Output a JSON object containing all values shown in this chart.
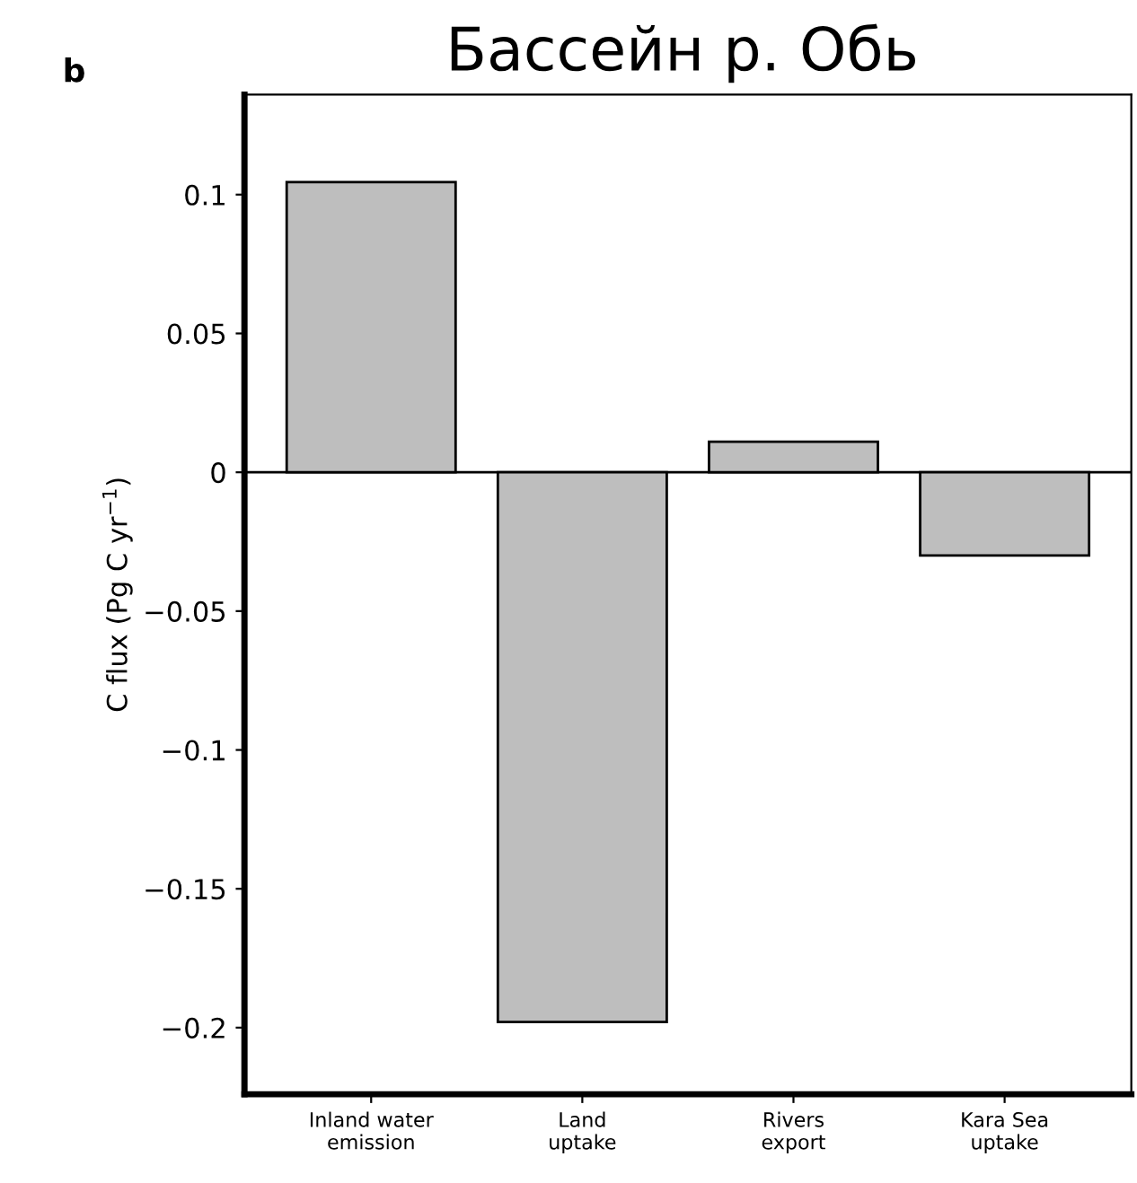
{
  "chart_data": {
    "type": "bar",
    "title": "Бассейн р. Обь",
    "ylabel": "C flux (Pg C yr$^{−1}$)",
    "annotations": [
      "b"
    ],
    "categories": [
      "Inland water\nemission",
      "Land\nuptake",
      "Rivers\nexport",
      "Kara Sea\nuptake"
    ],
    "values": [
      0.1045,
      -0.198,
      0.011,
      -0.03
    ],
    "color": "#bebebe",
    "ylim": [
      -0.224,
      0.136
    ],
    "yticks": [
      {
        "value": 0.1,
        "label": "0.1"
      },
      {
        "value": 0.05,
        "label": "0.05"
      },
      {
        "value": 0,
        "label": "0"
      },
      {
        "value": -0.05,
        "label": "−0.05"
      },
      {
        "value": -0.1,
        "label": "−0.1"
      },
      {
        "value": -0.15,
        "label": "−0.15"
      },
      {
        "value": -0.2,
        "label": "−0.2"
      }
    ],
    "ref_lines": [
      {
        "axis": "y",
        "value": 0,
        "color": "#000000"
      }
    ],
    "grid": false
  }
}
